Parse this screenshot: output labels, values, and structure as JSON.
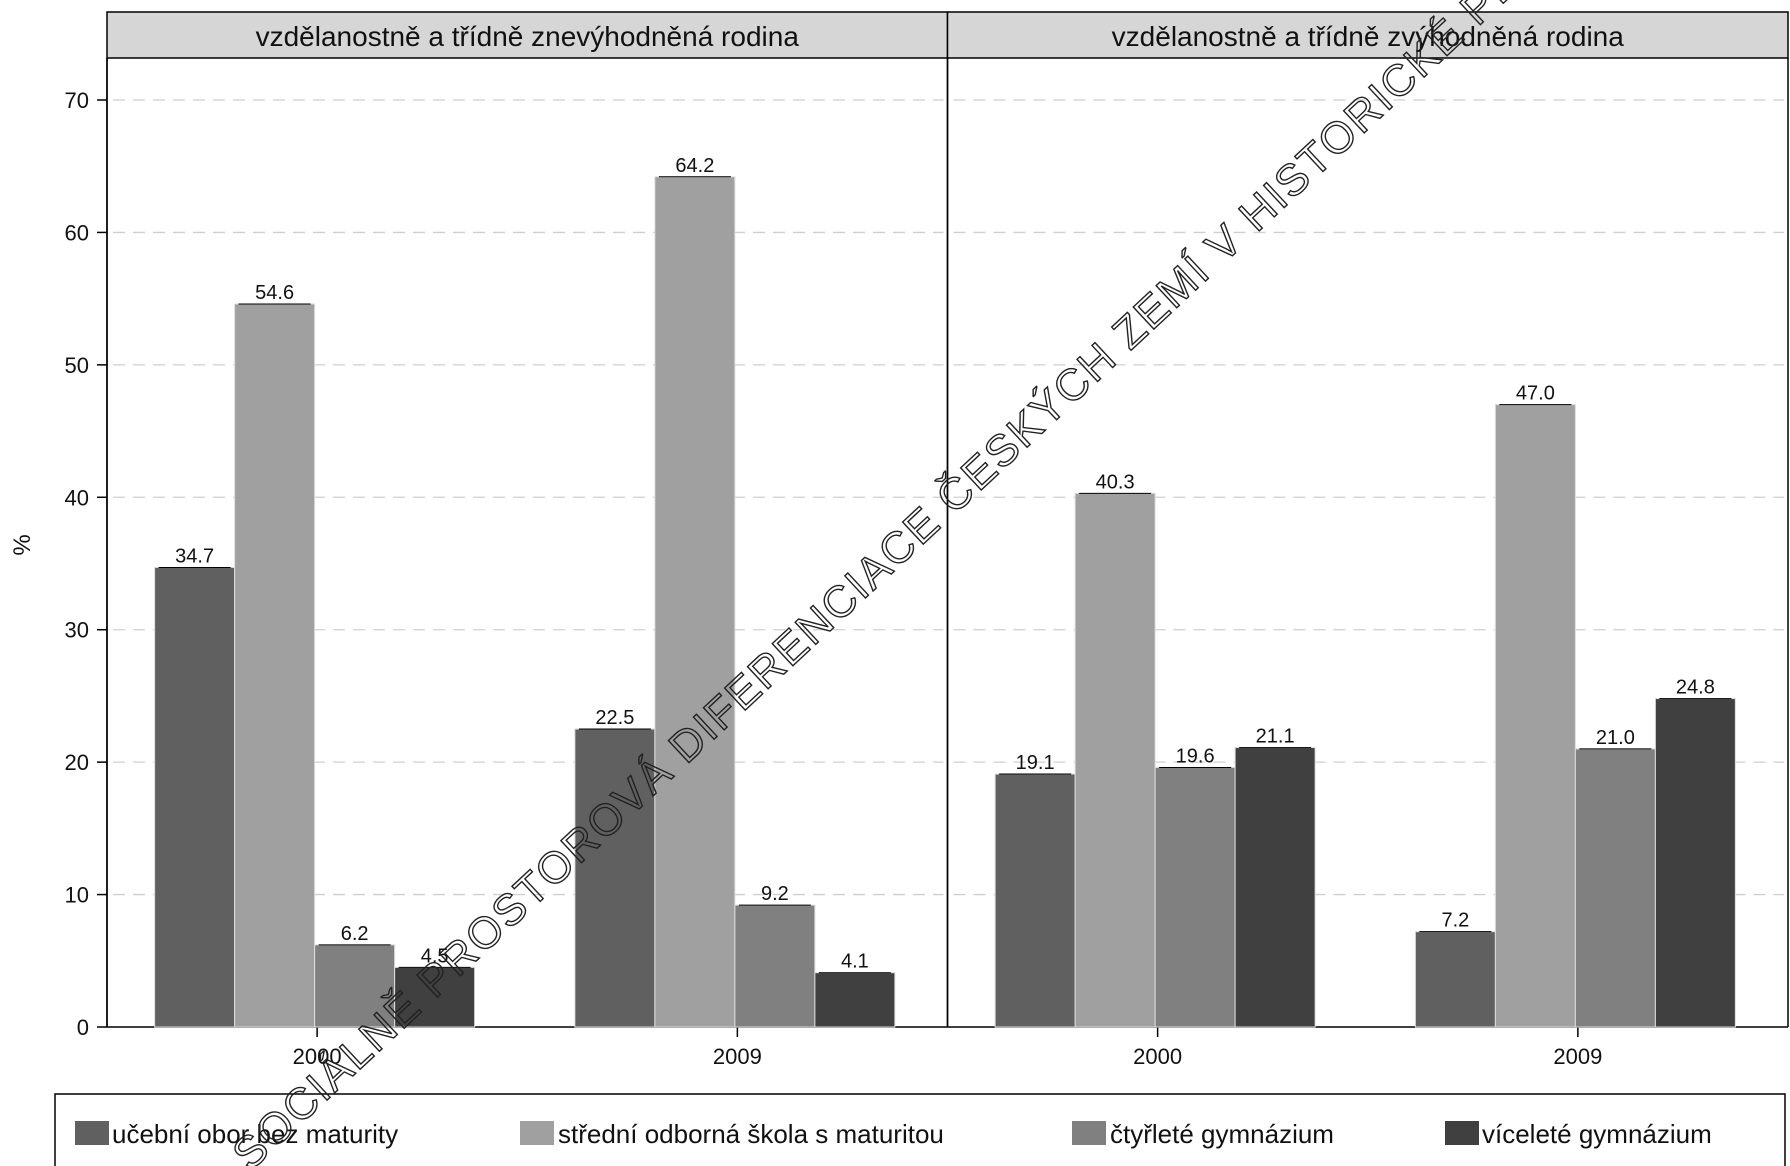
{
  "chart_data": {
    "type": "bar",
    "ylabel": "%",
    "ylim": [
      0,
      72
    ],
    "yticks": [
      0,
      10,
      20,
      30,
      40,
      50,
      60,
      70
    ],
    "grid": true,
    "legend_position": "bottom",
    "panels": [
      {
        "title": "vzdělanostně a třídně znevýhodněná rodina",
        "categories": [
          "2000",
          "2009"
        ],
        "series": [
          {
            "name": "učební obor bez maturity",
            "values": [
              34.7,
              22.5
            ],
            "labels": [
              "34.7",
              "22.5"
            ]
          },
          {
            "name": "střední odborná škola s maturitou",
            "values": [
              54.6,
              64.2
            ],
            "labels": [
              "54.6",
              "64.2"
            ]
          },
          {
            "name": "čtyřleté gymnázium",
            "values": [
              6.2,
              9.2
            ],
            "labels": [
              "6.2",
              "9.2"
            ]
          },
          {
            "name": "víceleté gymnázium",
            "values": [
              4.5,
              4.1
            ],
            "labels": [
              "4.5",
              "4.1"
            ]
          }
        ]
      },
      {
        "title": "vzdělanostně a třídně zvýhodněná rodina",
        "categories": [
          "2000",
          "2009"
        ],
        "series": [
          {
            "name": "učební obor bez maturity",
            "values": [
              19.1,
              7.2
            ],
            "labels": [
              "19.1",
              "7.2"
            ]
          },
          {
            "name": "střední odborná škola s maturitou",
            "values": [
              40.3,
              47.0
            ],
            "labels": [
              "40.3",
              "47.0"
            ]
          },
          {
            "name": "čtyřleté gymnázium",
            "values": [
              19.6,
              21.0
            ],
            "labels": [
              "19.6",
              "21.0"
            ]
          },
          {
            "name": "víceleté gymnázium",
            "values": [
              21.1,
              24.8
            ],
            "labels": [
              "21.1",
              "24.8"
            ]
          }
        ]
      }
    ],
    "legend": [
      "učební obor bez maturity",
      "střední odborná škola s maturitou",
      "čtyřleté gymnázium",
      "víceleté gymnázium"
    ],
    "colors": [
      "#606060",
      "#a0a0a0",
      "#808080",
      "#404040"
    ]
  },
  "watermark": "SOCIÁLNĚ PROSTOROVÁ DIFERENCIACE ČESKÝCH ZEMÍ V HISTORICKÉ PERSPEKTIVĚ"
}
